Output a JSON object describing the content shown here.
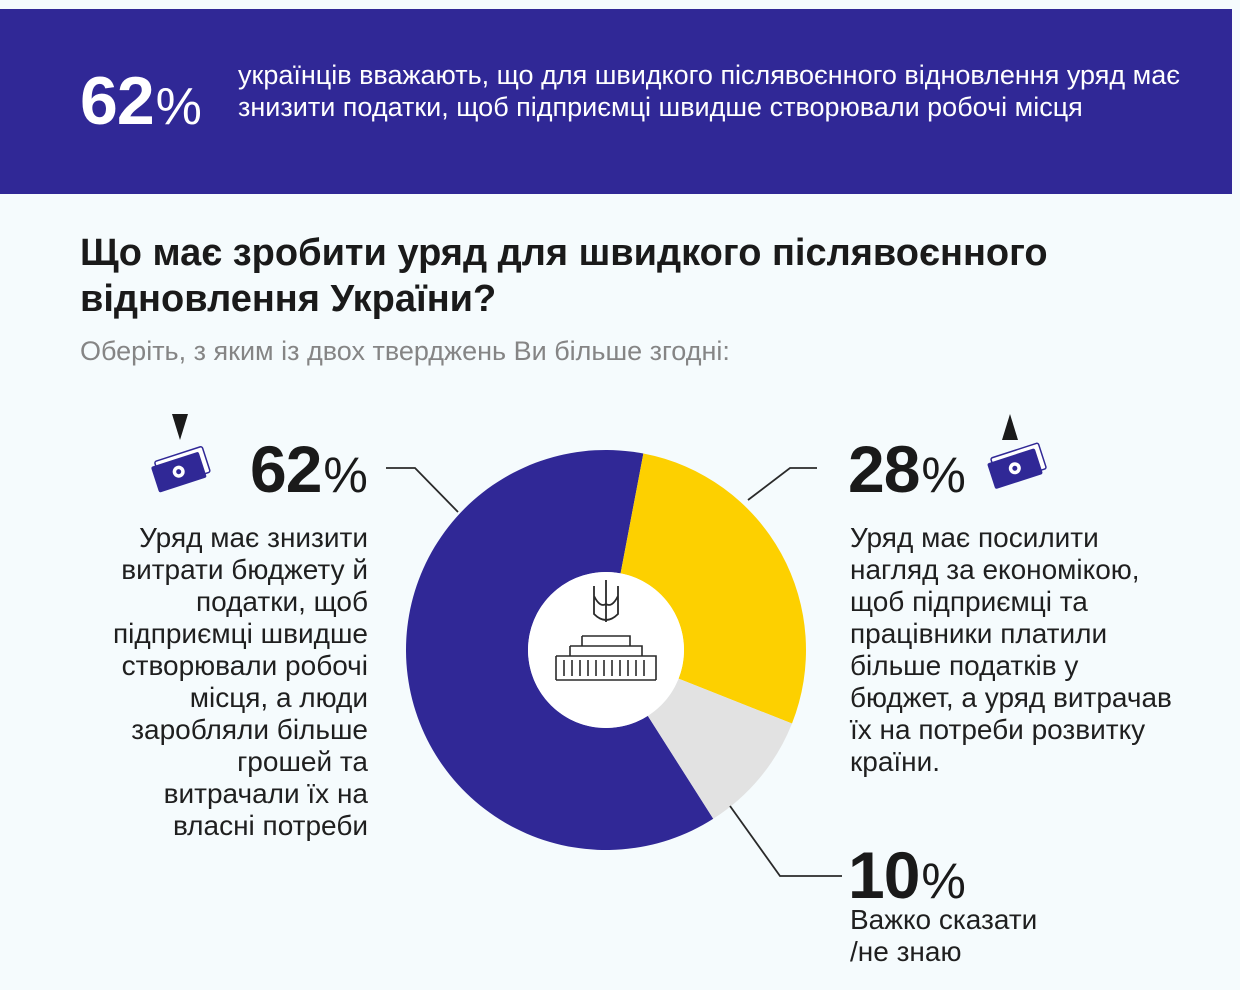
{
  "banner": {
    "value": "62",
    "percent_sign": "%",
    "text": "українців вважають, що для швидкого післявоєнного відновлення уряд має знизити податки, щоб підприємці швидше створювали робочі місця"
  },
  "question": "Що має зробити уряд для швидкого післявоєнного відновлення України?",
  "subtitle": "Оберіть, з яким із двох тверджень Ви більше згодні:",
  "percent_sign": "%",
  "chart_data": {
    "type": "pie",
    "variant": "donut",
    "slices": [
      {
        "label": "Уряд має знизити витрати бюджету й податки, щоб підприємці швидше створювали робочі місця, а люди заробляли більше грошей та витрачали їх на власні потреби",
        "value": 62,
        "color": "#302896"
      },
      {
        "label": "Уряд має посилити нагляд за економікою, щоб підприємці та працівники платили більше податків у бюджет, а уряд витрачав їх на потреби розвитку країни",
        "value": 28,
        "color": "#fdd000"
      },
      {
        "label": "Важко сказати /не знаю",
        "value": 10,
        "color": "#e2e2e2"
      }
    ],
    "callouts": [
      {
        "value": "62",
        "lines": [
          "Уряд має знизити",
          "витрати бюджету й",
          "податки, щоб",
          "підприємці швидше",
          "створювали робочі",
          "місця, а люди",
          "заробляли більше",
          "грошей та",
          "витрачали їх на",
          "власні потреби"
        ],
        "icon": "arrow-down-money-icon"
      },
      {
        "value": "28",
        "lines": [
          "Уряд має посилити",
          "нагляд за економікою,",
          "щоб підприємці та",
          "працівники платили",
          "більше податків у",
          "бюджет, а уряд витрачав",
          "їх на потреби розвитку",
          "країни."
        ],
        "icon": "arrow-up-money-icon"
      },
      {
        "value": "10",
        "lines": [
          "Важко сказати",
          "/не знаю"
        ]
      }
    ],
    "center_icons": [
      "trident-icon",
      "government-building-icon"
    ]
  }
}
